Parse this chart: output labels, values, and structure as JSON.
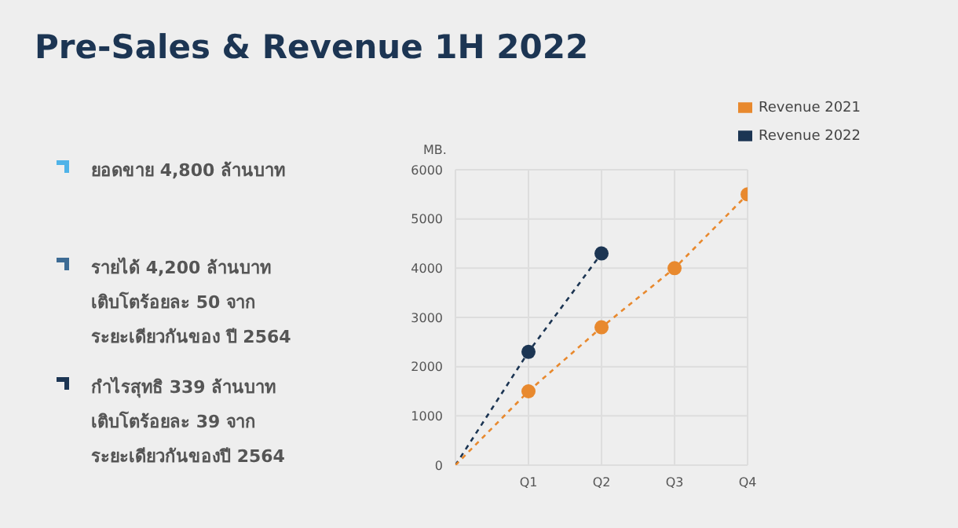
{
  "chart_data": {
    "type": "line",
    "title": "Pre-Sales & Revenue 1H 2022",
    "ylabel": "MB.",
    "categories": [
      null,
      "Q1",
      "Q2",
      "Q3",
      "Q4"
    ],
    "series": [
      {
        "name": "Revenue 2022",
        "color": "#1c3553",
        "values": [
          0,
          2300,
          4300,
          null,
          null
        ]
      },
      {
        "name": "Revenue 2021",
        "color": "#e8892e",
        "values": [
          0,
          1500,
          2800,
          4000,
          5500
        ]
      }
    ],
    "ylim": [
      0,
      6000
    ],
    "yticks": [
      0,
      1000,
      2000,
      3000,
      4000,
      5000,
      6000
    ],
    "grid": true,
    "legend": "top right",
    "marker": "circle",
    "line_style": "dashed",
    "annotations": [
      "ยอดขาย 4,800 ล้านบาท",
      "รายได้ 4,200 ล้านบาท",
      "เติบโตร้อยละ 50 จาก",
      "ระยะเดียวกันของ ปี 2564",
      "กำไรสุทธิ 339 ล้านบาท",
      "เติบโตร้อยละ 39 จาก",
      "ระยะเดียวกันของปี 2564"
    ]
  }
}
